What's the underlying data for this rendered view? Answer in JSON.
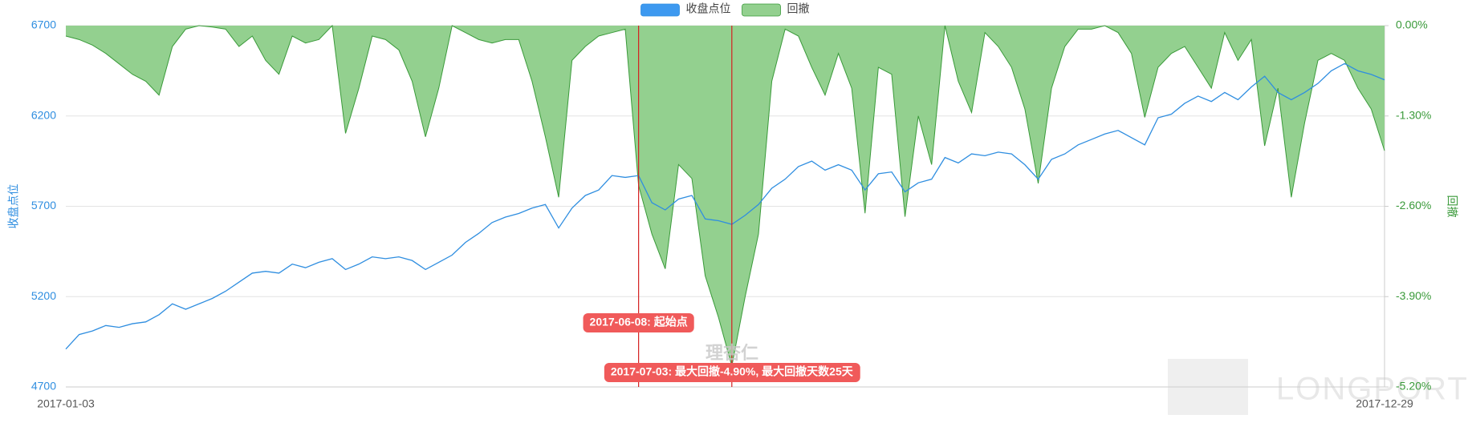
{
  "chart_data": {
    "type": "line-area",
    "legend_position": "top",
    "y_label": "收盘点位",
    "y2_label": "回撤",
    "categories": [
      "2017-01-03",
      null,
      null,
      null,
      null,
      null,
      null,
      null,
      null,
      null,
      null,
      null,
      null,
      null,
      null,
      null,
      null,
      null,
      null,
      null,
      null,
      null,
      null,
      null,
      null,
      null,
      null,
      null,
      null,
      null,
      null,
      null,
      null,
      null,
      null,
      null,
      null,
      null,
      null,
      null,
      null,
      null,
      null,
      null,
      null,
      null,
      null,
      null,
      null,
      null,
      null,
      null,
      null,
      null,
      null,
      null,
      null,
      null,
      null,
      null,
      null,
      null,
      null,
      null,
      null,
      null,
      null,
      null,
      null,
      null,
      null,
      null,
      null,
      null,
      null,
      null,
      null,
      null,
      null,
      null,
      null,
      null,
      null,
      null,
      null,
      null,
      null,
      null,
      null,
      null,
      null,
      null,
      null,
      null,
      null,
      null,
      null,
      null,
      null,
      "2017-12-29"
    ],
    "series": [
      {
        "name": "收盘点位",
        "color": "#2f8ee0",
        "legend_color": "#3d99f0",
        "values": [
          4910,
          4990,
          5010,
          5040,
          5030,
          5050,
          5060,
          5100,
          5160,
          5130,
          5160,
          5190,
          5230,
          5280,
          5330,
          5340,
          5330,
          5380,
          5360,
          5390,
          5410,
          5350,
          5380,
          5420,
          5410,
          5420,
          5400,
          5350,
          5390,
          5430,
          5500,
          5550,
          5610,
          5640,
          5660,
          5690,
          5710,
          5580,
          5690,
          5760,
          5790,
          5870,
          5860,
          5870,
          5720,
          5680,
          5740,
          5760,
          5630,
          5620,
          5600,
          5650,
          5710,
          5800,
          5850,
          5920,
          5950,
          5900,
          5930,
          5900,
          5790,
          5880,
          5890,
          5780,
          5830,
          5850,
          5970,
          5940,
          5990,
          5980,
          6000,
          5990,
          5930,
          5850,
          5960,
          5990,
          6040,
          6070,
          6100,
          6120,
          6080,
          6040,
          6190,
          6210,
          6270,
          6310,
          6280,
          6330,
          6290,
          6360,
          6420,
          6330,
          6290,
          6330,
          6380,
          6450,
          6490,
          6450,
          6430,
          6400
        ]
      },
      {
        "name": "回撤",
        "axis": "y2",
        "color": "#3a9a3a",
        "legend_color": "#93d08f",
        "fill": "#93d08f",
        "values": [
          -0.15,
          -0.2,
          -0.28,
          -0.4,
          -0.55,
          -0.7,
          -0.8,
          -1.0,
          -0.3,
          -0.05,
          0,
          -0.02,
          -0.05,
          -0.3,
          -0.15,
          -0.5,
          -0.7,
          -0.15,
          -0.25,
          -0.2,
          0,
          -1.55,
          -0.9,
          -0.15,
          -0.2,
          -0.35,
          -0.8,
          -1.6,
          -0.9,
          0,
          -0.1,
          -0.2,
          -0.25,
          -0.2,
          -0.2,
          -0.8,
          -1.6,
          -2.47,
          -0.5,
          -0.3,
          -0.15,
          -0.1,
          -0.05,
          -2.3,
          -3.0,
          -3.5,
          -2.0,
          -2.2,
          -3.6,
          -4.2,
          -4.9,
          -3.9,
          -3.0,
          -0.8,
          -0.05,
          -0.15,
          -0.6,
          -1.0,
          -0.4,
          -0.9,
          -2.7,
          -0.6,
          -0.7,
          -2.75,
          -1.3,
          -2.0,
          0,
          -0.8,
          -1.25,
          -0.1,
          -0.3,
          -0.6,
          -1.2,
          -2.27,
          -0.9,
          -0.3,
          -0.05,
          -0.05,
          0,
          -0.1,
          -0.4,
          -1.32,
          -0.6,
          -0.4,
          -0.3,
          -0.6,
          -0.9,
          -0.1,
          -0.5,
          -0.2,
          -1.73,
          -0.9,
          -2.47,
          -1.4,
          -0.5,
          -0.4,
          -0.5,
          -0.9,
          -1.2,
          -1.8
        ]
      }
    ],
    "ylim": [
      4700,
      6700
    ],
    "yticks": [
      4700,
      5200,
      5700,
      6200,
      6700
    ],
    "y2lim": [
      -5.2,
      0
    ],
    "y2ticks": [
      {
        "value": 0,
        "label": "0.00%"
      },
      {
        "value": -1.3,
        "label": "-1.30%"
      },
      {
        "value": -2.6,
        "label": "-2.60%"
      },
      {
        "value": -3.9,
        "label": "-3.90%"
      },
      {
        "value": -5.2,
        "label": "-5.20%"
      }
    ],
    "grid": true,
    "annotations": [
      {
        "index": 43,
        "text": "2017-06-08: 起始点",
        "color": "#f05a5a"
      },
      {
        "index": 50,
        "text": "2017-07-03: 最大回撤-4.90%, 最大回撤天数25天",
        "color": "#f05a5a"
      }
    ],
    "watermarks": [
      "理杏仁",
      "LONGPORT"
    ]
  }
}
